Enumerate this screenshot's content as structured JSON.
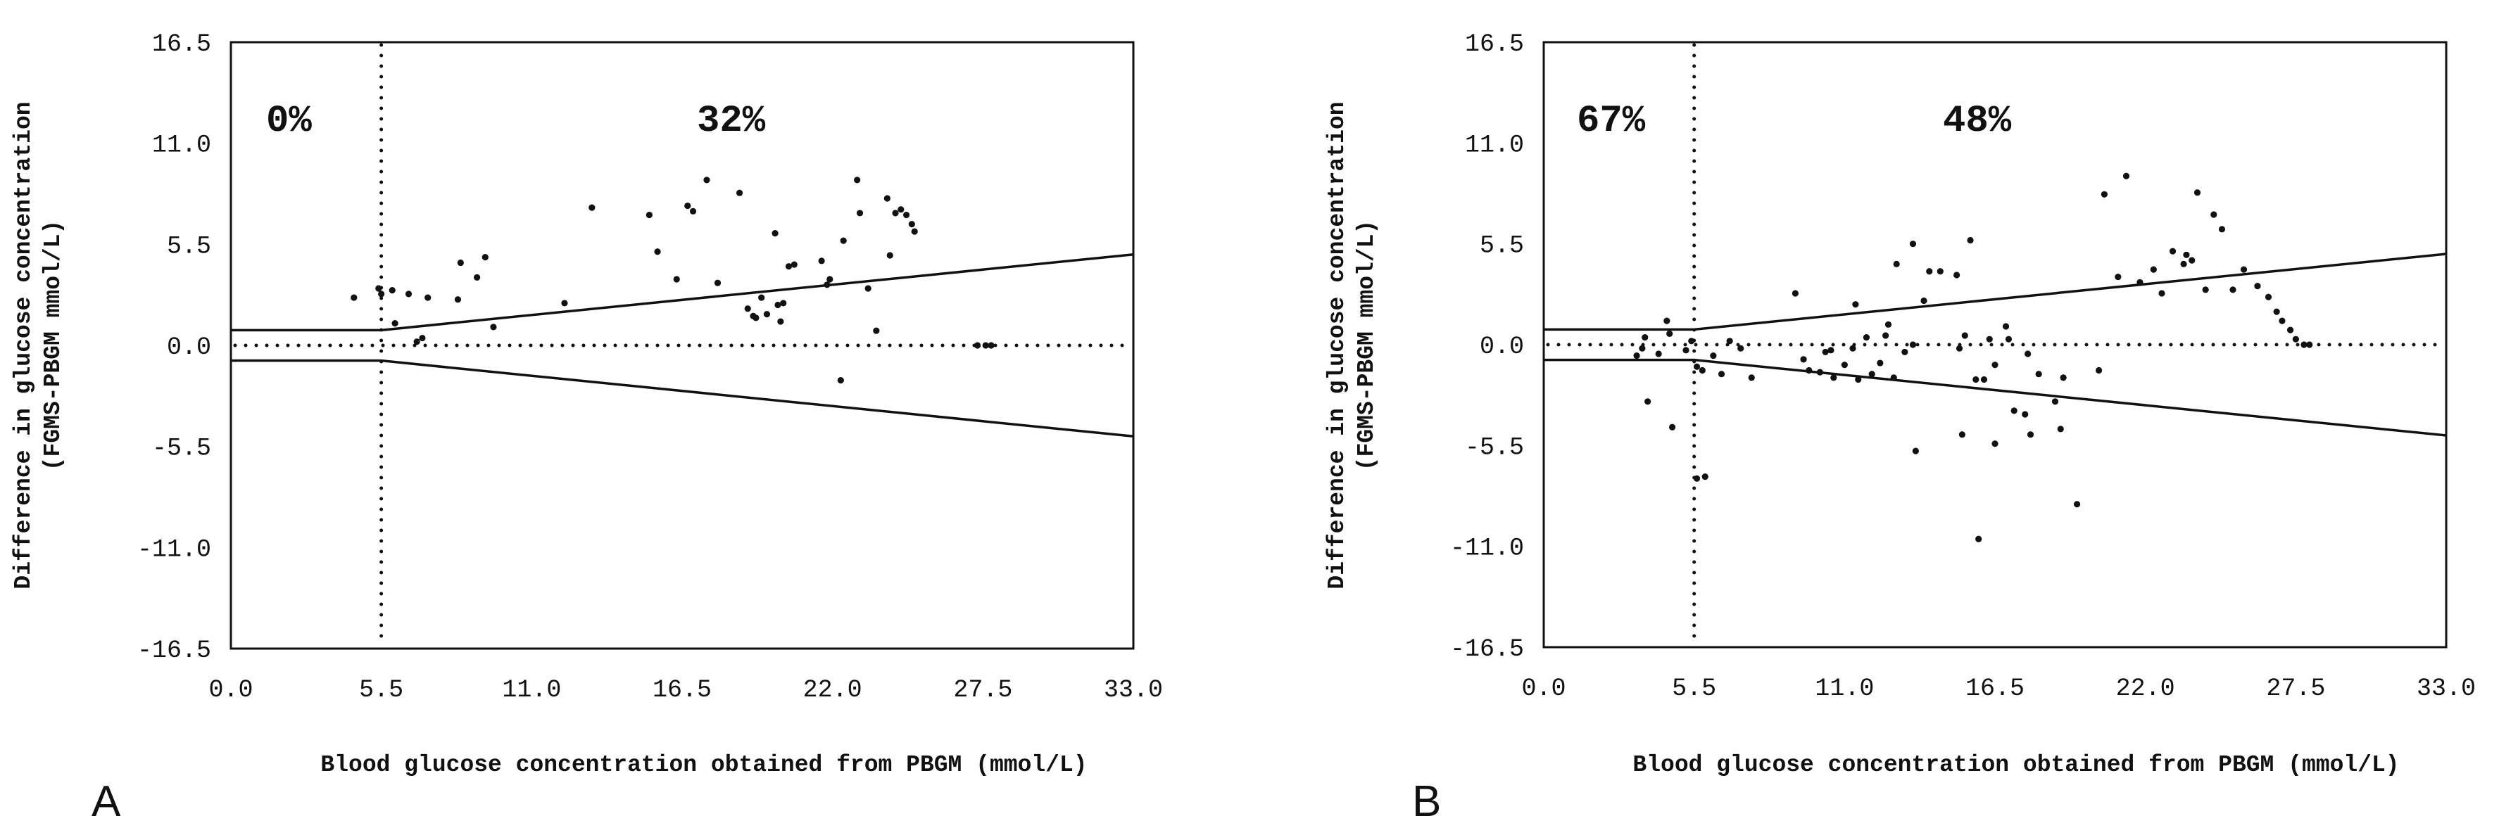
{
  "chart_data": [
    {
      "type": "scatter",
      "panel_label": "A",
      "xlabel": "Blood glucose concentration obtained from PBGM (mmol/L)",
      "ylabel": "Difference in glucose concentration",
      "ylabel2": "(FGMS-PBGM mmol/L)",
      "xlim": [
        0,
        33
      ],
      "ylim": [
        -16.5,
        16.5
      ],
      "xticks": [
        "0.0",
        "5.5",
        "11.0",
        "16.5",
        "22.0",
        "27.5",
        "33.0"
      ],
      "yticks": [
        "16.5",
        "11.0",
        "5.5",
        "0.0",
        "-5.5",
        "-11.0",
        "-16.5"
      ],
      "vline_x": 5.5,
      "zero_line_y": 0,
      "upper_limit": [
        [
          0,
          0.83
        ],
        [
          5.5,
          0.83
        ],
        [
          33,
          4.95
        ]
      ],
      "lower_limit": [
        [
          0,
          -0.83
        ],
        [
          5.5,
          -0.83
        ],
        [
          33,
          -4.95
        ]
      ],
      "left_pct": "0%",
      "right_pct": "32%",
      "points": [
        [
          4.5,
          2.6
        ],
        [
          5.4,
          3.1
        ],
        [
          5.5,
          2.8
        ],
        [
          5.9,
          3.0
        ],
        [
          6.0,
          1.2
        ],
        [
          6.5,
          2.8
        ],
        [
          7.0,
          0.4
        ],
        [
          6.8,
          0.2
        ],
        [
          7.2,
          2.6
        ],
        [
          8.3,
          2.5
        ],
        [
          8.4,
          4.5
        ],
        [
          9.0,
          3.7
        ],
        [
          9.3,
          4.8
        ],
        [
          9.6,
          1.0
        ],
        [
          12.2,
          2.3
        ],
        [
          13.2,
          7.5
        ],
        [
          15.3,
          7.1
        ],
        [
          15.6,
          5.1
        ],
        [
          16.3,
          3.6
        ],
        [
          16.7,
          7.6
        ],
        [
          16.9,
          7.3
        ],
        [
          17.4,
          9.0
        ],
        [
          17.8,
          3.4
        ],
        [
          18.6,
          8.3
        ],
        [
          18.9,
          2.0
        ],
        [
          19.1,
          1.6
        ],
        [
          19.2,
          1.5
        ],
        [
          19.4,
          2.6
        ],
        [
          19.6,
          1.7
        ],
        [
          19.9,
          6.1
        ],
        [
          20.0,
          2.2
        ],
        [
          20.1,
          1.3
        ],
        [
          20.2,
          2.3
        ],
        [
          20.4,
          4.3
        ],
        [
          20.6,
          4.4
        ],
        [
          21.8,
          3.3
        ],
        [
          21.9,
          3.6
        ],
        [
          22.3,
          -1.9
        ],
        [
          22.4,
          5.7
        ],
        [
          22.9,
          9.0
        ],
        [
          23.0,
          7.2
        ],
        [
          23.3,
          3.1
        ],
        [
          23.6,
          0.8
        ],
        [
          21.6,
          4.6
        ],
        [
          24.0,
          8.0
        ],
        [
          24.1,
          4.9
        ],
        [
          24.3,
          7.2
        ],
        [
          24.5,
          7.4
        ],
        [
          24.7,
          7.1
        ],
        [
          24.9,
          6.6
        ],
        [
          25.0,
          6.2
        ],
        [
          27.3,
          0.0
        ],
        [
          27.6,
          0.0
        ],
        [
          27.8,
          0.0
        ]
      ]
    },
    {
      "type": "scatter",
      "panel_label": "B",
      "xlabel": "Blood glucose concentration obtained from PBGM (mmol/L)",
      "ylabel": "Difference in glucose concentration",
      "ylabel2": "(FGMS-PBGM mmol/L)",
      "xlim": [
        0,
        33
      ],
      "ylim": [
        -16.5,
        16.5
      ],
      "xticks": [
        "0.0",
        "5.5",
        "11.0",
        "16.5",
        "22.0",
        "27.5",
        "33.0"
      ],
      "yticks": [
        "16.5",
        "11.0",
        "5.5",
        "0.0",
        "-5.5",
        "-11.0",
        "-16.5"
      ],
      "vline_x": 5.5,
      "zero_line_y": 0,
      "upper_limit": [
        [
          0,
          0.83
        ],
        [
          5.5,
          0.83
        ],
        [
          33,
          4.95
        ]
      ],
      "lower_limit": [
        [
          0,
          -0.83
        ],
        [
          5.5,
          -0.83
        ],
        [
          33,
          -4.95
        ]
      ],
      "left_pct": "67%",
      "right_pct": "48%",
      "points": [
        [
          3.4,
          -0.6
        ],
        [
          3.6,
          -0.2
        ],
        [
          3.7,
          0.4
        ],
        [
          3.8,
          -3.1
        ],
        [
          4.2,
          -0.5
        ],
        [
          4.5,
          1.3
        ],
        [
          4.6,
          0.6
        ],
        [
          4.7,
          -4.5
        ],
        [
          5.2,
          -0.3
        ],
        [
          5.4,
          0.2
        ],
        [
          5.6,
          -1.2
        ],
        [
          5.8,
          -1.4
        ],
        [
          6.2,
          -0.6
        ],
        [
          6.5,
          -1.6
        ],
        [
          6.8,
          0.2
        ],
        [
          7.2,
          -0.2
        ],
        [
          5.6,
          -7.3
        ],
        [
          5.9,
          -7.2
        ],
        [
          7.6,
          -1.8
        ],
        [
          9.2,
          2.8
        ],
        [
          9.5,
          -0.8
        ],
        [
          9.7,
          -1.4
        ],
        [
          10.1,
          -1.5
        ],
        [
          10.3,
          -0.4
        ],
        [
          10.5,
          -0.3
        ],
        [
          10.6,
          -1.8
        ],
        [
          11.0,
          -1.1
        ],
        [
          11.3,
          -0.2
        ],
        [
          11.5,
          -1.9
        ],
        [
          11.4,
          2.2
        ],
        [
          11.8,
          0.4
        ],
        [
          12.0,
          -1.6
        ],
        [
          12.3,
          -1.0
        ],
        [
          12.5,
          0.5
        ],
        [
          12.6,
          1.1
        ],
        [
          12.8,
          -1.8
        ],
        [
          12.9,
          4.4
        ],
        [
          13.2,
          -0.4
        ],
        [
          13.5,
          0.0
        ],
        [
          13.5,
          5.5
        ],
        [
          13.6,
          -5.8
        ],
        [
          13.9,
          2.4
        ],
        [
          14.1,
          4.0
        ],
        [
          14.5,
          4.0
        ],
        [
          15.1,
          3.8
        ],
        [
          15.2,
          -0.2
        ],
        [
          15.3,
          -4.9
        ],
        [
          15.4,
          0.5
        ],
        [
          15.6,
          5.7
        ],
        [
          15.8,
          -1.9
        ],
        [
          15.9,
          -10.6
        ],
        [
          16.1,
          -1.9
        ],
        [
          16.3,
          0.3
        ],
        [
          16.5,
          -1.1
        ],
        [
          16.5,
          -5.4
        ],
        [
          16.9,
          1.0
        ],
        [
          17.0,
          0.3
        ],
        [
          17.2,
          -3.6
        ],
        [
          17.6,
          -3.8
        ],
        [
          17.7,
          -0.5
        ],
        [
          17.8,
          -4.9
        ],
        [
          18.1,
          -1.6
        ],
        [
          18.7,
          -3.1
        ],
        [
          18.9,
          -4.6
        ],
        [
          19.0,
          -1.8
        ],
        [
          19.5,
          -8.7
        ],
        [
          20.3,
          -1.4
        ],
        [
          20.5,
          8.2
        ],
        [
          21.0,
          3.7
        ],
        [
          21.3,
          9.2
        ],
        [
          21.8,
          3.4
        ],
        [
          22.3,
          4.1
        ],
        [
          22.6,
          2.8
        ],
        [
          23.0,
          5.1
        ],
        [
          23.4,
          4.4
        ],
        [
          23.5,
          4.9
        ],
        [
          23.7,
          4.6
        ],
        [
          23.9,
          8.3
        ],
        [
          24.2,
          3.0
        ],
        [
          24.5,
          7.1
        ],
        [
          24.8,
          6.3
        ],
        [
          25.2,
          3.0
        ],
        [
          25.6,
          4.1
        ],
        [
          26.1,
          3.2
        ],
        [
          26.5,
          2.6
        ],
        [
          26.8,
          1.8
        ],
        [
          27.0,
          1.3
        ],
        [
          27.3,
          0.8
        ],
        [
          27.5,
          0.3
        ],
        [
          27.8,
          0.0
        ],
        [
          28.0,
          0.0
        ]
      ]
    }
  ]
}
